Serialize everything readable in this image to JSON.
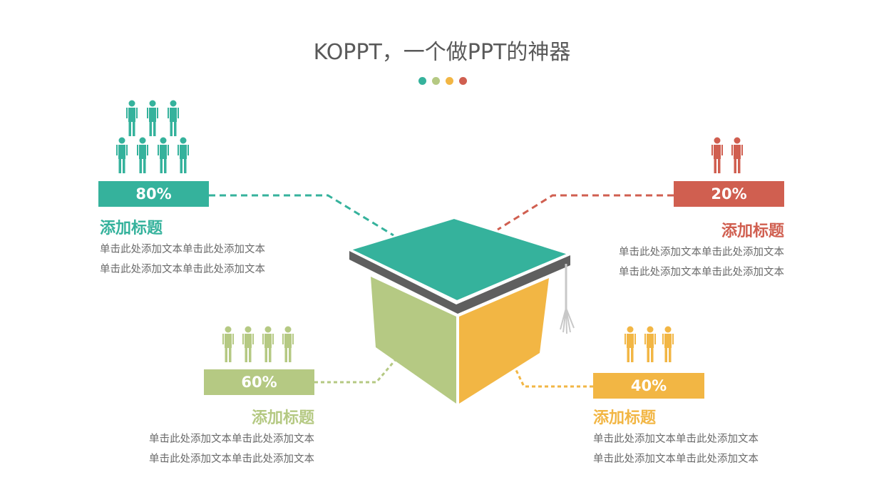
{
  "title": "KOPPT，一个做PPT的神器",
  "colors": {
    "teal": "#35b29c",
    "red": "#d05f50",
    "green": "#b5c983",
    "orange": "#f2b644",
    "cap_band": "#5f5f5f",
    "tassel": "#c8c8c8"
  },
  "items": [
    {
      "percent": "80%",
      "value": 80,
      "people": 7,
      "heading": "添加标题",
      "lines": [
        "单击此处添加文本单击此处添加文本",
        "单击此处添加文本单击此处添加文本"
      ],
      "color": "#35b29c"
    },
    {
      "percent": "20%",
      "value": 20,
      "people": 2,
      "heading": "添加标题",
      "lines": [
        "单击此处添加文本单击此处添加文本",
        "单击此处添加文本单击此处添加文本"
      ],
      "color": "#d05f50"
    },
    {
      "percent": "60%",
      "value": 60,
      "people": 4,
      "heading": "添加标题",
      "lines": [
        "单击此处添加文本单击此处添加文本",
        "单击此处添加文本单击此处添加文本"
      ],
      "color": "#b5c983"
    },
    {
      "percent": "40%",
      "value": 40,
      "people": 3,
      "heading": "添加标题",
      "lines": [
        "单击此处添加文本单击此处添加文本",
        "单击此处添加文本单击此处添加文本"
      ],
      "color": "#f2b644"
    }
  ]
}
